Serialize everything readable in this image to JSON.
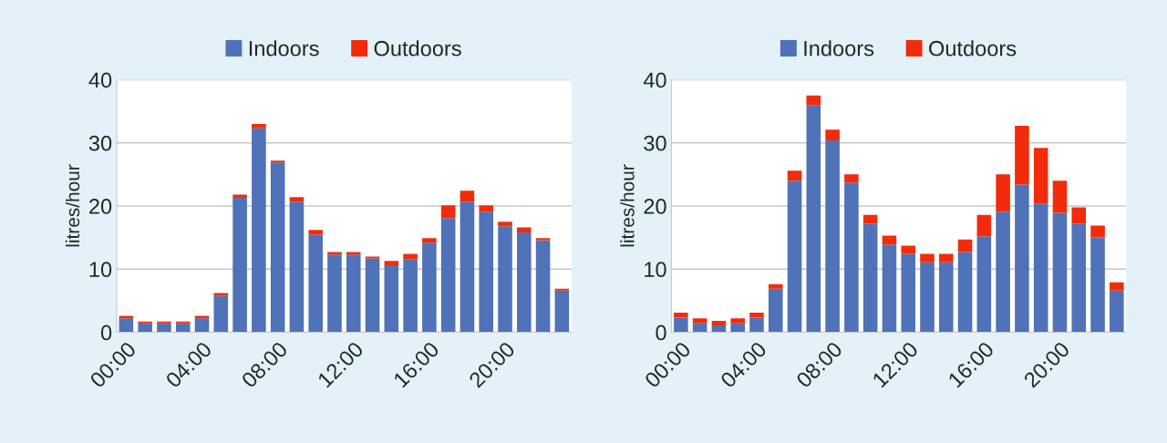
{
  "chart_data": [
    {
      "type": "bar",
      "stacked": true,
      "ylabel": "litres/hour",
      "categories": [
        "00:00",
        null,
        null,
        null,
        "04:00",
        null,
        null,
        null,
        "08:00",
        null,
        null,
        null,
        "12:00",
        null,
        null,
        null,
        "16:00",
        null,
        null,
        null,
        "20:00",
        null,
        null,
        null
      ],
      "series": [
        {
          "name": "Indoors",
          "color": "#4f72b8",
          "values": [
            2.2,
            1.4,
            1.4,
            1.4,
            2.2,
            5.8,
            21.3,
            32.3,
            26.9,
            20.7,
            15.5,
            12.3,
            12.3,
            11.7,
            10.6,
            11.6,
            14.2,
            18.1,
            20.7,
            19.1,
            16.8,
            15.8,
            14.6,
            6.6
          ]
        },
        {
          "name": "Outdoors",
          "color": "#f22c0a",
          "values": [
            0.4,
            0.3,
            0.3,
            0.3,
            0.4,
            0.4,
            0.5,
            0.7,
            0.3,
            0.7,
            0.7,
            0.4,
            0.4,
            0.3,
            0.7,
            0.8,
            0.7,
            2.0,
            1.7,
            1.0,
            0.7,
            0.8,
            0.3,
            0.3
          ]
        }
      ],
      "ylim": [
        0,
        40
      ],
      "yticks": [
        0,
        10,
        20,
        30,
        40
      ],
      "grid": "y",
      "legend": "top"
    },
    {
      "type": "bar",
      "stacked": true,
      "ylabel": "litres/hour",
      "categories": [
        "00:00",
        null,
        null,
        null,
        "04:00",
        null,
        null,
        null,
        "08:00",
        null,
        null,
        null,
        "12:00",
        null,
        null,
        null,
        "16:00",
        null,
        null,
        null,
        "20:00",
        null,
        null,
        null
      ],
      "series": [
        {
          "name": "Indoors",
          "color": "#4f72b8",
          "values": [
            2.3,
            1.4,
            1.1,
            1.4,
            2.3,
            6.9,
            24.0,
            35.9,
            30.4,
            23.7,
            17.2,
            13.9,
            12.4,
            11.1,
            11.1,
            12.7,
            15.2,
            19.1,
            23.4,
            20.4,
            18.9,
            17.2,
            15.0,
            6.6
          ]
        },
        {
          "name": "Outdoors",
          "color": "#f22c0a",
          "values": [
            0.8,
            0.8,
            0.7,
            0.8,
            0.8,
            0.7,
            1.6,
            1.6,
            1.7,
            1.3,
            1.4,
            1.4,
            1.3,
            1.3,
            1.3,
            2.0,
            3.4,
            5.9,
            9.3,
            8.8,
            5.1,
            2.6,
            1.9,
            1.3
          ]
        }
      ],
      "ylim": [
        0,
        40
      ],
      "yticks": [
        0,
        10,
        20,
        30,
        40
      ],
      "grid": "y",
      "legend": "top"
    }
  ]
}
